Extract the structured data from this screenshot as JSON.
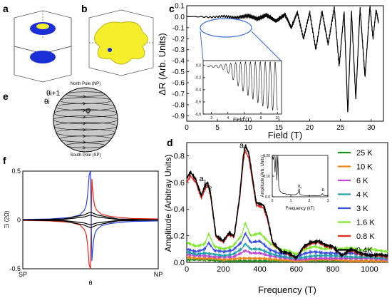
{
  "figure": {
    "panels": {
      "a": "a",
      "b": "b",
      "c": "c",
      "d": "d",
      "e": "e",
      "f": "f"
    },
    "colors": {
      "fermi_blue": "#1b2fd6",
      "fermi_yellow": "#f4ef2a",
      "sphere_gray": "#c9c9c9",
      "red": "#e8261f",
      "blue": "#2b43e0",
      "black": "#000000"
    }
  },
  "panel_e": {
    "north_pole": "North Pole (NP)",
    "south_pole": "South Pole (SP)",
    "theta_i_plus_1": "θi+1",
    "theta_i": "θi",
    "phi": "φ"
  },
  "chart_data": [
    {
      "id": "c",
      "type": "line",
      "xlabel": "Field (T)",
      "ylabel": "ΔR (Arb. Units)",
      "xlim": [
        0,
        32
      ],
      "ylim": [
        -0.95,
        0.1
      ],
      "xticks": [
        "0",
        "5",
        "10",
        "15",
        "20",
        "25",
        "30"
      ],
      "yticks": [
        "0.1",
        "0.0",
        "-0.1",
        "-0.2",
        "-0.3",
        "-0.4",
        "-0.5",
        "-0.6",
        "-0.7",
        "-0.8",
        "-0.9"
      ],
      "series": [
        {
          "x": [
            0,
            2,
            4,
            6,
            8,
            10,
            11.5,
            13,
            14.5,
            16,
            17,
            18,
            19,
            20,
            21,
            22,
            23,
            24,
            24.8,
            25.6,
            26.2,
            26.8,
            27.5,
            28.2,
            29,
            29.8,
            30.3,
            30.8,
            31.2
          ],
          "y": [
            0.0,
            0.0,
            -0.005,
            0.005,
            -0.01,
            0.01,
            -0.02,
            0.015,
            -0.04,
            0.02,
            -0.1,
            0.04,
            -0.2,
            0.04,
            -0.3,
            0.05,
            -0.25,
            0.08,
            -0.45,
            0.05,
            -0.88,
            0.05,
            -0.75,
            0.08,
            -0.55,
            0.1,
            -0.2,
            0.06,
            -0.05
          ]
        }
      ],
      "inset": {
        "xlabel": "Field (T)",
        "xlim": [
          1,
          10.5
        ],
        "ylim": [
          -0.8,
          0.08
        ],
        "xticks": [
          "2",
          "4",
          "6",
          "8",
          "10"
        ],
        "yticks": [
          "0.0",
          "-0.2",
          "-0.4",
          "-0.6",
          "-0.8"
        ],
        "envelope": {
          "x": [
            1.5,
            2,
            3,
            3.5,
            4,
            5,
            6,
            7,
            8,
            9,
            10
          ],
          "upper": [
            0.0,
            0.0,
            0.01,
            0.02,
            0.03,
            0.05,
            0.06,
            0.06,
            0.06,
            0.06,
            0.06
          ],
          "lower": [
            -0.02,
            -0.03,
            -0.04,
            -0.07,
            -0.12,
            -0.3,
            -0.45,
            -0.55,
            -0.65,
            -0.72,
            -0.75
          ]
        }
      }
    },
    {
      "id": "d",
      "type": "line",
      "xlabel": "Frequency (T)",
      "ylabel": "Amplitude (Arbitray Units)",
      "xlim": [
        0,
        1100
      ],
      "ylim": [
        0,
        0.9
      ],
      "xticks": [
        "0",
        "200",
        "400",
        "600",
        "800",
        "1000"
      ],
      "yticks": [
        "0.0",
        "0.2",
        "0.4",
        "0.6",
        "0.8"
      ],
      "annotations": [
        {
          "label": "a1",
          "x": 100,
          "y": 0.6
        },
        {
          "label": "a2",
          "x": 130,
          "y": 0.55
        },
        {
          "label": "a3",
          "x": 320,
          "y": 0.85
        }
      ],
      "legend": [
        "25 K",
        "10 K",
        "6 K",
        "4 K",
        "3 K",
        "1.6 K",
        "0.8 K",
        "0.4K"
      ],
      "series": [
        {
          "name": "0.4K",
          "color": "#000000",
          "x": [
            0,
            20,
            50,
            80,
            100,
            115,
            130,
            160,
            200,
            230,
            260,
            290,
            310,
            320,
            340,
            380,
            420,
            440,
            470,
            520,
            560,
            600,
            640,
            680,
            720,
            760,
            800,
            850,
            900,
            950,
            1000,
            1050,
            1100
          ],
          "y": [
            0.63,
            0.68,
            0.62,
            0.5,
            0.58,
            0.6,
            0.52,
            0.2,
            0.16,
            0.22,
            0.2,
            0.5,
            0.8,
            0.88,
            0.82,
            0.45,
            0.43,
            0.35,
            0.15,
            0.08,
            0.07,
            0.03,
            0.12,
            0.15,
            0.16,
            0.13,
            0.12,
            0.05,
            0.1,
            0.07,
            0.05,
            0.06,
            0.05
          ]
        },
        {
          "name": "0.8 K",
          "color": "#e8261f",
          "x": [
            0,
            20,
            50,
            80,
            100,
            115,
            130,
            160,
            200,
            230,
            260,
            290,
            310,
            320,
            340,
            380,
            420,
            440,
            470,
            520,
            560,
            600,
            640,
            680,
            720,
            760,
            800,
            850,
            900,
            950,
            1000,
            1050,
            1100
          ],
          "y": [
            0.6,
            0.65,
            0.6,
            0.48,
            0.55,
            0.58,
            0.5,
            0.19,
            0.15,
            0.21,
            0.19,
            0.48,
            0.76,
            0.84,
            0.78,
            0.43,
            0.41,
            0.33,
            0.14,
            0.08,
            0.06,
            0.03,
            0.11,
            0.14,
            0.15,
            0.12,
            0.11,
            0.05,
            0.09,
            0.06,
            0.05,
            0.05,
            0.04
          ]
        },
        {
          "name": "1.6 K",
          "color": "#7fe82e",
          "x": [
            0,
            50,
            100,
            120,
            150,
            200,
            250,
            300,
            320,
            350,
            400,
            450,
            500,
            550,
            600,
            650,
            700,
            750,
            800,
            850,
            900,
            950,
            1000,
            1050,
            1100
          ],
          "y": [
            0.15,
            0.12,
            0.14,
            0.22,
            0.12,
            0.1,
            0.12,
            0.2,
            0.3,
            0.2,
            0.22,
            0.15,
            0.1,
            0.09,
            0.06,
            0.1,
            0.12,
            0.1,
            0.11,
            0.1,
            0.11,
            0.09,
            0.1,
            0.09,
            0.08
          ]
        },
        {
          "name": "3 K",
          "color": "#3a4fe0",
          "x": [
            0,
            50,
            100,
            120,
            150,
            200,
            250,
            300,
            320,
            350,
            400,
            450,
            500,
            550,
            600,
            650,
            700,
            750,
            800,
            850,
            900,
            950,
            1000,
            1050,
            1100
          ],
          "y": [
            0.1,
            0.08,
            0.1,
            0.15,
            0.09,
            0.08,
            0.09,
            0.15,
            0.22,
            0.15,
            0.16,
            0.1,
            0.07,
            0.06,
            0.04,
            0.07,
            0.08,
            0.07,
            0.07,
            0.06,
            0.07,
            0.06,
            0.06,
            0.05,
            0.05
          ]
        },
        {
          "name": "4 K",
          "color": "#20a3a8",
          "x": [
            0,
            50,
            100,
            150,
            200,
            250,
            300,
            320,
            350,
            400,
            450,
            500,
            600,
            700,
            800,
            900,
            1000,
            1100
          ],
          "y": [
            0.08,
            0.06,
            0.07,
            0.06,
            0.05,
            0.06,
            0.1,
            0.14,
            0.1,
            0.1,
            0.07,
            0.05,
            0.03,
            0.05,
            0.05,
            0.04,
            0.04,
            0.03
          ]
        },
        {
          "name": "6 K",
          "color": "#c04ad6",
          "x": [
            0,
            50,
            100,
            150,
            200,
            250,
            300,
            320,
            350,
            400,
            450,
            500,
            600,
            700,
            800,
            900,
            1000,
            1100
          ],
          "y": [
            0.06,
            0.05,
            0.05,
            0.04,
            0.04,
            0.04,
            0.07,
            0.09,
            0.07,
            0.07,
            0.05,
            0.04,
            0.02,
            0.03,
            0.03,
            0.03,
            0.03,
            0.02
          ]
        },
        {
          "name": "10 K",
          "color": "#f0861a",
          "x": [
            0,
            50,
            100,
            150,
            200,
            300,
            400,
            500,
            600,
            700,
            800,
            900,
            1000,
            1100
          ],
          "y": [
            0.04,
            0.03,
            0.03,
            0.03,
            0.02,
            0.03,
            0.03,
            0.02,
            0.01,
            0.02,
            0.02,
            0.01,
            0.01,
            0.01
          ]
        },
        {
          "name": "25 K",
          "color": "#1f8c1f",
          "x": [
            0,
            100,
            200,
            300,
            400,
            500,
            600,
            700,
            800,
            900,
            1000,
            1100
          ],
          "y": [
            0.02,
            0.02,
            0.01,
            0.01,
            0.01,
            0.01,
            0.01,
            0.01,
            0.01,
            0.01,
            0.01,
            0.01
          ]
        }
      ],
      "inset": {
        "xlabel": "Frequency (kT)",
        "ylabel": "Amplitude (Arb. Units)",
        "xlim": [
          0,
          3
        ],
        "ylim": [
          0,
          0.2
        ],
        "xticks": [
          "0",
          "1",
          "2",
          "3"
        ],
        "yticks": [
          "0.0",
          "0.05",
          "0.10",
          "0.15",
          "0.20"
        ],
        "annotations": [
          {
            "label": "a4",
            "x": 1.45,
            "y": 0.04
          },
          {
            "label": "b",
            "x": 2.75,
            "y": 0.02
          }
        ],
        "x": [
          0,
          0.05,
          0.1,
          0.15,
          0.2,
          0.25,
          0.3,
          0.35,
          0.4,
          0.5,
          0.6,
          0.7,
          0.8,
          0.9,
          1.0,
          1.1,
          1.2,
          1.3,
          1.4,
          1.45,
          1.5,
          1.6,
          1.8,
          2.0,
          2.2,
          2.4,
          2.6,
          2.7,
          2.8,
          2.9,
          3.0
        ],
        "y": [
          0.2,
          0.18,
          0.2,
          0.12,
          0.2,
          0.08,
          0.2,
          0.05,
          0.03,
          0.02,
          0.015,
          0.015,
          0.01,
          0.012,
          0.01,
          0.01,
          0.01,
          0.012,
          0.02,
          0.04,
          0.01,
          0.008,
          0.006,
          0.006,
          0.005,
          0.005,
          0.006,
          0.015,
          0.006,
          0.005,
          0.005
        ]
      }
    },
    {
      "id": "f",
      "type": "line",
      "ylabel": "Ξi (2Ω)",
      "xticks": [
        "SP",
        "NP"
      ],
      "xlabel": "θ",
      "ylim": [
        -0.5,
        0.5
      ],
      "yticks": [
        "0.5",
        "0",
        "-0.5"
      ],
      "series": [
        {
          "color": "#e8261f",
          "x": [
            0.0,
            0.2,
            0.35,
            0.42,
            0.455,
            0.47,
            0.478,
            0.485,
            0.49,
            0.5,
            0.51,
            0.515,
            0.522,
            0.53,
            0.545,
            0.58,
            0.65,
            0.8,
            1.0
          ],
          "y": [
            -0.005,
            -0.01,
            -0.025,
            -0.05,
            -0.1,
            -0.16,
            -0.25,
            -0.36,
            -0.46,
            -0.5,
            0.42,
            0.32,
            0.22,
            0.15,
            0.1,
            0.06,
            0.035,
            0.015,
            0.01
          ]
        },
        {
          "color": "#2b43e0",
          "x": [
            0.0,
            0.2,
            0.35,
            0.42,
            0.455,
            0.47,
            0.478,
            0.485,
            0.49,
            0.5,
            0.51,
            0.515,
            0.522,
            0.53,
            0.545,
            0.58,
            0.65,
            0.8,
            1.0
          ],
          "y": [
            0.005,
            0.01,
            0.025,
            0.05,
            0.1,
            0.16,
            0.25,
            0.36,
            0.46,
            0.5,
            -0.42,
            -0.32,
            -0.22,
            -0.15,
            -0.1,
            -0.06,
            -0.035,
            -0.015,
            -0.01
          ]
        },
        {
          "color": "#000000",
          "x": [
            0.0,
            0.3,
            0.45,
            0.5,
            0.55,
            0.7,
            1.0
          ],
          "y": [
            0.0,
            0.005,
            0.03,
            0.05,
            0.03,
            0.005,
            0.0
          ]
        },
        {
          "color": "#000000",
          "x": [
            0.0,
            0.3,
            0.45,
            0.5,
            0.55,
            0.7,
            1.0
          ],
          "y": [
            0.0,
            0.01,
            0.05,
            0.08,
            0.05,
            0.01,
            0.0
          ]
        },
        {
          "color": "#000000",
          "x": [
            0.0,
            0.3,
            0.45,
            0.5,
            0.55,
            0.7,
            1.0
          ],
          "y": [
            0.0,
            -0.005,
            -0.03,
            -0.05,
            -0.03,
            -0.005,
            0.0
          ]
        },
        {
          "color": "#000000",
          "x": [
            0.0,
            0.3,
            0.45,
            0.5,
            0.55,
            0.7,
            1.0
          ],
          "y": [
            0.0,
            -0.01,
            -0.05,
            -0.08,
            -0.05,
            -0.01,
            0.0
          ]
        }
      ]
    }
  ]
}
